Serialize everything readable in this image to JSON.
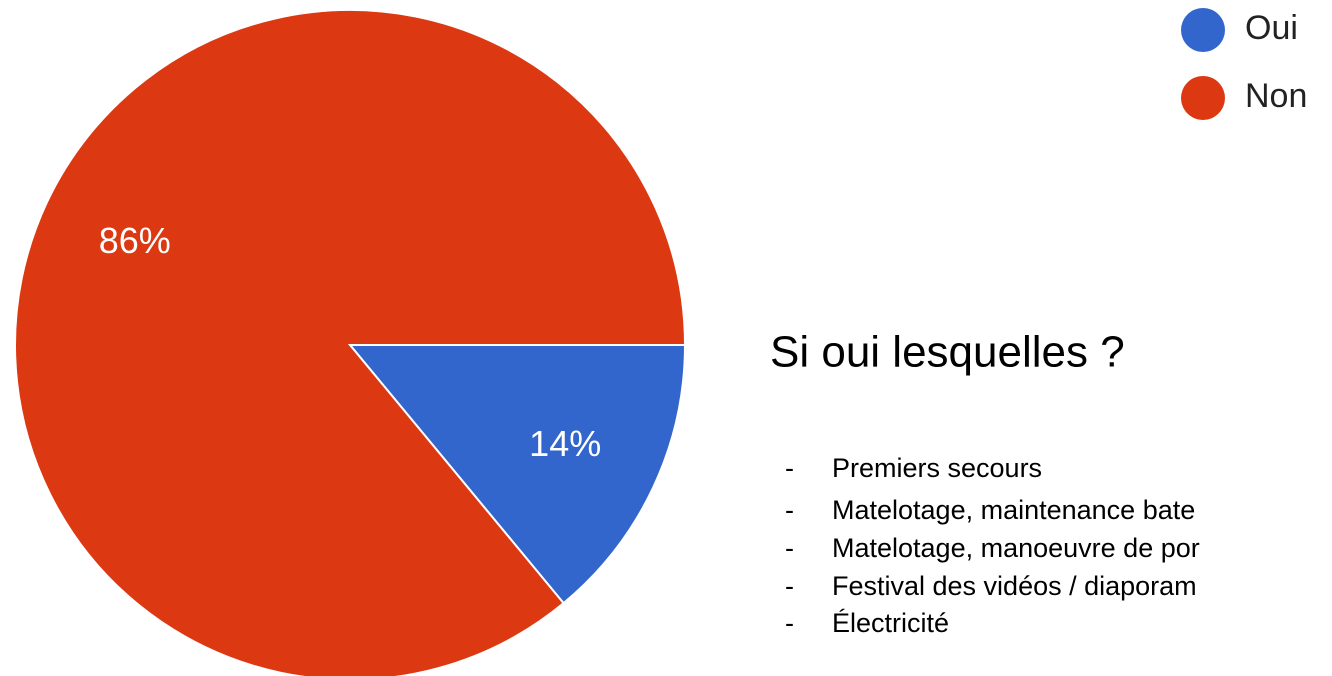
{
  "chart_data": {
    "type": "pie",
    "categories": [
      "Oui",
      "Non"
    ],
    "values": [
      14,
      86
    ],
    "value_labels": [
      "14%",
      "86%"
    ],
    "colors": [
      "#3366cc",
      "#dc3912"
    ],
    "legend": "top-right"
  },
  "heading": "Si oui lesquelles ?",
  "list": [
    "Premiers secours",
    "Matelotage, maintenance bate",
    "Matelotage, manoeuvre de por",
    "Festival des vidéos / diaporam",
    "Électricité"
  ]
}
